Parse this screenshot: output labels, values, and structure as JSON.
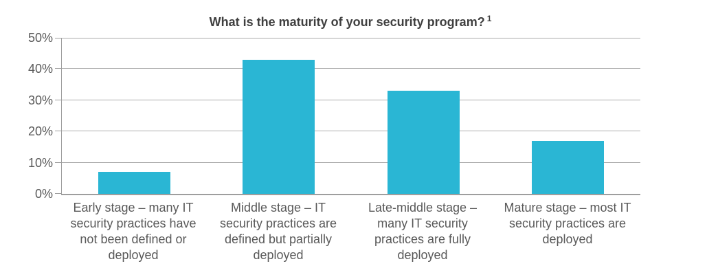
{
  "title": {
    "text": "What is the maturity of your security program?",
    "superscript": "1"
  },
  "chart_data": {
    "type": "bar",
    "title": "What is the maturity of your security program? ¹",
    "categories": [
      "Early stage – many IT security practices have not been defined or deployed",
      "Middle stage – IT security practices are defined but partially deployed",
      "Late-middle stage – many IT security practices are fully deployed",
      "Mature stage – most IT security practices are deployed"
    ],
    "values": [
      7,
      43,
      33,
      17
    ],
    "value_unit": "%",
    "xlabel": "",
    "ylabel": "",
    "ylim": [
      0,
      50
    ],
    "ytick_interval": 10,
    "ytick_labels": [
      "0%",
      "10%",
      "20%",
      "30%",
      "40%",
      "50%"
    ],
    "grid": true,
    "legend": false,
    "bar_color": "#2AB6D4",
    "gridline_color": "#ababab",
    "axis_color": "#9e9e9e",
    "title_color": "#3f3f3f",
    "label_color": "#595959"
  }
}
